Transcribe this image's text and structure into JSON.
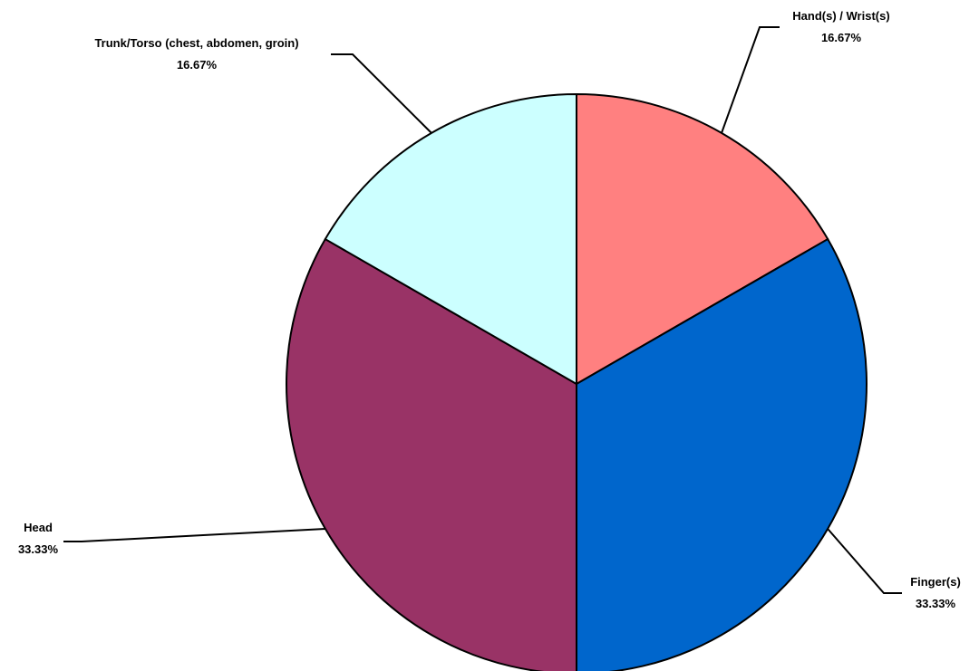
{
  "chart_data": {
    "type": "pie",
    "title": "",
    "slices": [
      {
        "label": "Hand(s) / Wrist(s)",
        "percent_label": "16.67%",
        "value": 16.67,
        "color": "#FF8080"
      },
      {
        "label": "Finger(s)",
        "percent_label": "33.33%",
        "value": 33.33,
        "color": "#0066CC"
      },
      {
        "label": "Head",
        "percent_label": "33.33%",
        "value": 33.33,
        "color": "#993366"
      },
      {
        "label": "Trunk/Torso (chest, abdomen, groin)",
        "percent_label": "16.67%",
        "value": 16.67,
        "color": "#CCFFFF"
      }
    ],
    "start_angle": "12 o'clock",
    "direction": "clockwise",
    "legend": "none"
  }
}
